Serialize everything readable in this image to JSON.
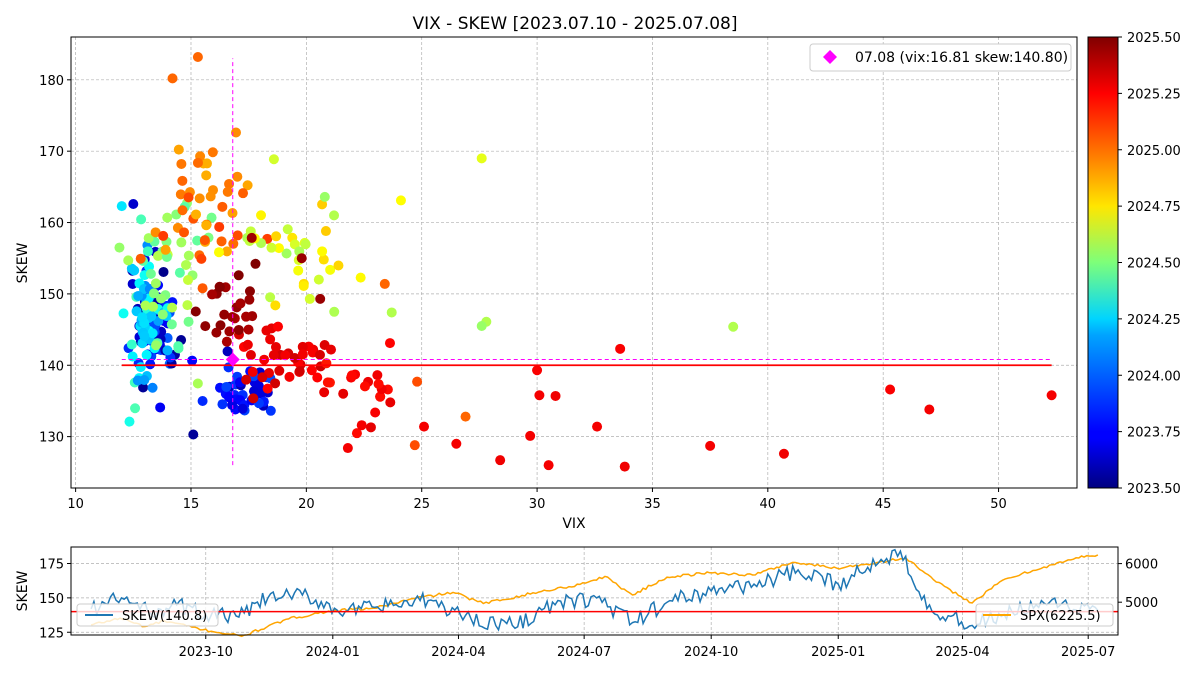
{
  "chart_data": [
    {
      "type": "scatter",
      "title": "VIX - SKEW [2023.07.10 - 2025.07.08]",
      "xlabel": "VIX",
      "ylabel": "SKEW",
      "xlim": [
        9.8,
        53.4
      ],
      "ylim": [
        122.8,
        186.0
      ],
      "x_ticks": [
        10,
        15,
        20,
        25,
        30,
        35,
        40,
        45,
        50
      ],
      "y_ticks": [
        130,
        140,
        150,
        160,
        170,
        180
      ],
      "grid": true,
      "legend_position": "top-right",
      "legend_label": "07.08 (vix:16.81 skew:140.80)",
      "latest_point": {
        "vix": 16.81,
        "skew": 140.8,
        "color": "#ff00ff",
        "marker": "diamond"
      },
      "mean_skew_line": {
        "y": 140.0,
        "x_from": 12.0,
        "x_to": 52.3,
        "color": "#ff0000"
      },
      "colorbar": {
        "colormap": "jet",
        "range": [
          2023.5,
          2025.5
        ],
        "tick_labels": [
          "2023.50",
          "2023.75",
          "2024.00",
          "2024.25",
          "2024.50",
          "2024.75",
          "2025.00",
          "2025.25",
          "2025.50"
        ]
      },
      "color_dimension": "date (decimal year)",
      "highlighted_points": [
        {
          "x": 52.3,
          "y": 135.8,
          "t": 2025.27
        },
        {
          "x": 47.0,
          "y": 133.8,
          "t": 2025.27
        },
        {
          "x": 45.3,
          "y": 136.6,
          "t": 2025.26
        },
        {
          "x": 40.7,
          "y": 127.6,
          "t": 2025.28
        },
        {
          "x": 38.5,
          "y": 145.4,
          "t": 2024.6
        },
        {
          "x": 37.5,
          "y": 128.7,
          "t": 2025.27
        },
        {
          "x": 33.8,
          "y": 125.8,
          "t": 2025.28
        },
        {
          "x": 33.6,
          "y": 142.3,
          "t": 2025.26
        },
        {
          "x": 32.6,
          "y": 131.4,
          "t": 2025.27
        },
        {
          "x": 30.8,
          "y": 135.7,
          "t": 2025.28
        },
        {
          "x": 30.5,
          "y": 126.0,
          "t": 2025.27
        },
        {
          "x": 30.1,
          "y": 135.8,
          "t": 2025.27
        },
        {
          "x": 30.0,
          "y": 139.3,
          "t": 2025.26
        },
        {
          "x": 29.7,
          "y": 130.1,
          "t": 2025.27
        },
        {
          "x": 28.4,
          "y": 126.7,
          "t": 2025.28
        },
        {
          "x": 27.8,
          "y": 146.1,
          "t": 2024.6
        },
        {
          "x": 27.6,
          "y": 169.0,
          "t": 2024.7
        },
        {
          "x": 27.6,
          "y": 145.5,
          "t": 2024.55
        },
        {
          "x": 26.9,
          "y": 132.8,
          "t": 2025.05
        },
        {
          "x": 26.5,
          "y": 129.0,
          "t": 2025.27
        },
        {
          "x": 25.1,
          "y": 131.4,
          "t": 2025.27
        },
        {
          "x": 24.8,
          "y": 137.7,
          "t": 2025.1
        },
        {
          "x": 24.7,
          "y": 128.8,
          "t": 2025.1
        },
        {
          "x": 24.1,
          "y": 163.1,
          "t": 2024.75
        },
        {
          "x": 23.7,
          "y": 147.4,
          "t": 2024.6
        },
        {
          "x": 23.4,
          "y": 151.4,
          "t": 2025.05
        },
        {
          "x": 22.4,
          "y": 131.6,
          "t": 2025.27
        },
        {
          "x": 21.8,
          "y": 128.4,
          "t": 2025.27
        },
        {
          "x": 21.2,
          "y": 161.0,
          "t": 2024.6
        },
        {
          "x": 20.8,
          "y": 163.6,
          "t": 2024.55
        },
        {
          "x": 19.8,
          "y": 155.0,
          "t": 2025.45
        },
        {
          "x": 20.6,
          "y": 149.3,
          "t": 2025.45
        },
        {
          "x": 15.3,
          "y": 183.2,
          "t": 2025.05
        },
        {
          "x": 14.2,
          "y": 180.2,
          "t": 2025.05
        },
        {
          "x": 12.0,
          "y": 162.3,
          "t": 2024.2
        },
        {
          "x": 12.5,
          "y": 162.6,
          "t": 2023.65
        },
        {
          "x": 15.1,
          "y": 130.3,
          "t": 2023.55
        }
      ]
    },
    {
      "type": "line",
      "title": "",
      "ylabel": "SKEW",
      "x_range": [
        "2023-07-10",
        "2025-07-08"
      ],
      "x_tick_labels": [
        "2023-10",
        "2024-01",
        "2024-04",
        "2024-07",
        "2024-10",
        "2025-01",
        "2025-04",
        "2025-07"
      ],
      "y_left_ticks": [
        125,
        150,
        175
      ],
      "y_left_range": [
        123,
        187
      ],
      "y_right_ticks": [
        "5000",
        "6000"
      ],
      "y_right_range": [
        4150,
        6430
      ],
      "grid": true,
      "series": [
        {
          "name": "SKEW(140.8)",
          "axis": "left",
          "color": "#1f77b4",
          "anchors": [
            [
              "2023-07-10",
              142
            ],
            [
              "2023-08-01",
              150
            ],
            [
              "2023-08-20",
              140
            ],
            [
              "2023-09-10",
              145
            ],
            [
              "2023-10-01",
              138
            ],
            [
              "2023-10-25",
              136
            ],
            [
              "2023-11-15",
              150
            ],
            [
              "2023-12-10",
              152
            ],
            [
              "2024-01-10",
              140
            ],
            [
              "2024-02-10",
              144
            ],
            [
              "2024-03-10",
              148
            ],
            [
              "2024-04-10",
              135
            ],
            [
              "2024-05-10",
              130
            ],
            [
              "2024-06-10",
              145
            ],
            [
              "2024-07-10",
              150
            ],
            [
              "2024-08-05",
              132
            ],
            [
              "2024-09-01",
              148
            ],
            [
              "2024-10-01",
              155
            ],
            [
              "2024-11-01",
              160
            ],
            [
              "2024-12-01",
              168
            ],
            [
              "2025-01-01",
              160
            ],
            [
              "2025-02-01",
              178
            ],
            [
              "2025-02-15",
              184
            ],
            [
              "2025-03-10",
              140
            ],
            [
              "2025-04-08",
              130
            ],
            [
              "2025-05-01",
              138
            ],
            [
              "2025-06-01",
              145
            ],
            [
              "2025-07-08",
              140.8
            ]
          ]
        },
        {
          "name": "SPX(6225.5)",
          "axis": "right",
          "color": "#ffa500",
          "anchors": [
            [
              "2023-07-10",
              4410
            ],
            [
              "2023-07-31",
              4588
            ],
            [
              "2023-08-18",
              4370
            ],
            [
              "2023-09-01",
              4515
            ],
            [
              "2023-09-29",
              4288
            ],
            [
              "2023-10-27",
              4117
            ],
            [
              "2023-11-30",
              4567
            ],
            [
              "2023-12-29",
              4770
            ],
            [
              "2024-01-31",
              4845
            ],
            [
              "2024-02-29",
              5096
            ],
            [
              "2024-03-28",
              5254
            ],
            [
              "2024-04-19",
              4967
            ],
            [
              "2024-05-31",
              5277
            ],
            [
              "2024-06-28",
              5460
            ],
            [
              "2024-07-16",
              5667
            ],
            [
              "2024-08-05",
              5186
            ],
            [
              "2024-08-30",
              5648
            ],
            [
              "2024-09-30",
              5762
            ],
            [
              "2024-10-31",
              5705
            ],
            [
              "2024-11-29",
              6032
            ],
            [
              "2024-12-31",
              5882
            ],
            [
              "2025-01-31",
              6040
            ],
            [
              "2025-02-19",
              6144
            ],
            [
              "2025-03-13",
              5521
            ],
            [
              "2025-04-08",
              4982
            ],
            [
              "2025-04-30",
              5569
            ],
            [
              "2025-05-30",
              5912
            ],
            [
              "2025-06-30",
              6205
            ],
            [
              "2025-07-08",
              6225.5
            ]
          ]
        },
        {
          "name": "",
          "axis": "left",
          "color": "#ff0000",
          "constant": 140.0
        }
      ]
    }
  ]
}
